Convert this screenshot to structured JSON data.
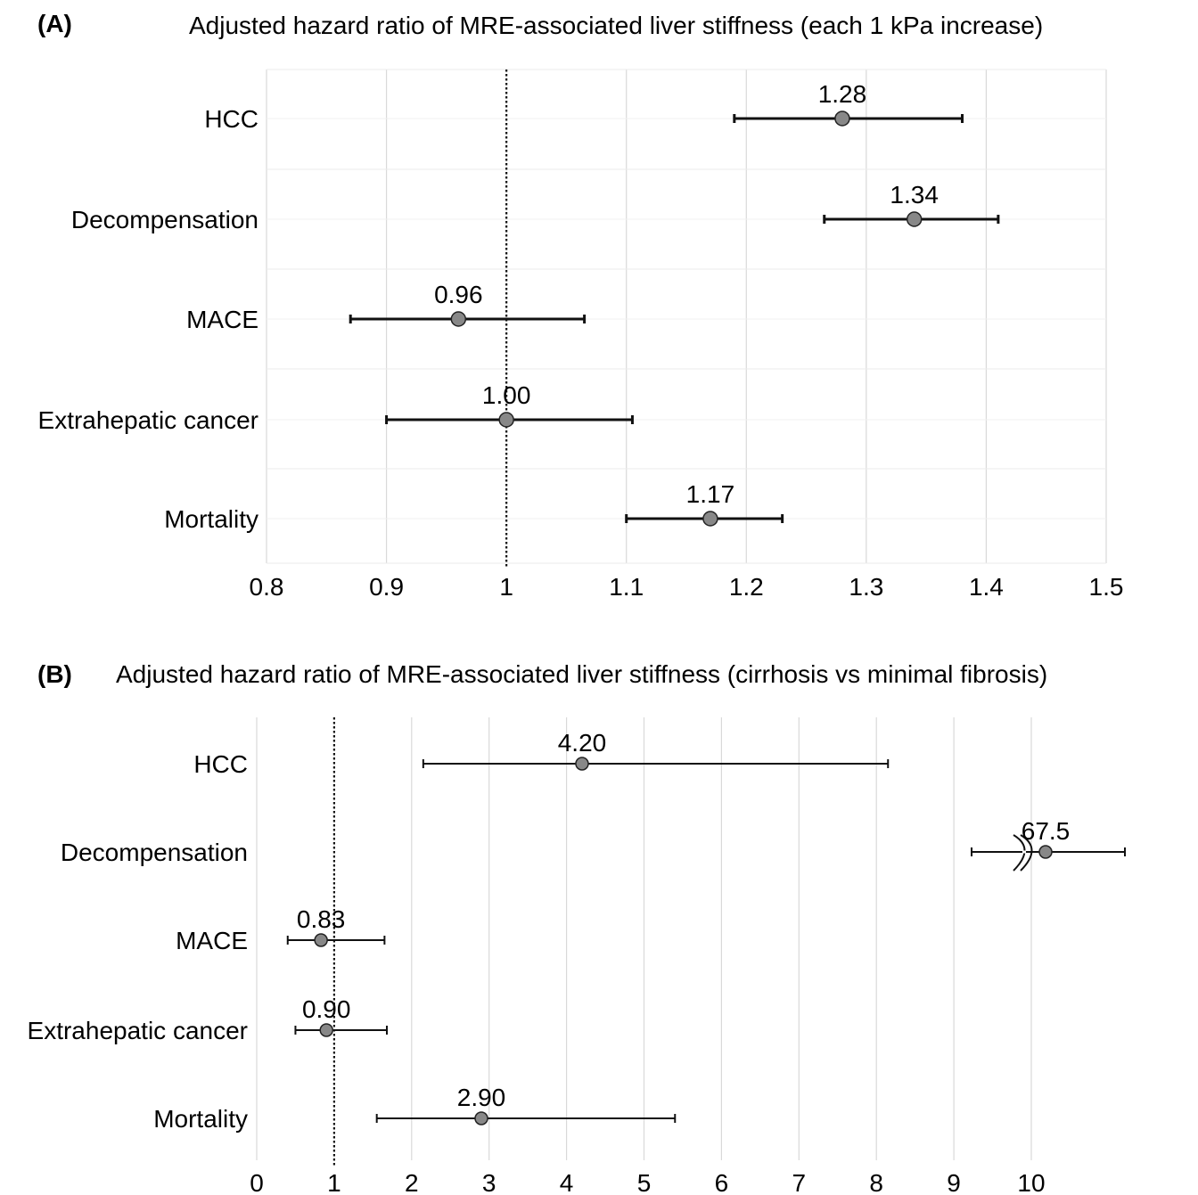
{
  "chart_data": [
    {
      "type": "forest",
      "panel_label": "(A)",
      "title": "Adjusted hazard ratio of MRE-associated liver stiffness (each 1 kPa increase)",
      "xlabel": "",
      "ylabel": "",
      "xlim": [
        0.8,
        1.5
      ],
      "xticks": [
        0.8,
        0.9,
        1,
        1.1,
        1.2,
        1.3,
        1.4,
        1.5
      ],
      "xtick_labels": [
        "0.8",
        "0.9",
        "1",
        "1.1",
        "1.2",
        "1.3",
        "1.4",
        "1.5"
      ],
      "reference_line": 1,
      "grid": true,
      "categories": [
        "HCC",
        "Decompensation",
        "MACE",
        "Extrahepatic cancer",
        "Mortality"
      ],
      "estimates": [
        1.28,
        1.34,
        0.96,
        1.0,
        1.17
      ],
      "value_labels": [
        "1.28",
        "1.34",
        "0.96",
        "1.00",
        "1.17"
      ],
      "ci_lower": [
        1.19,
        1.265,
        0.87,
        0.9,
        1.1
      ],
      "ci_upper": [
        1.38,
        1.41,
        1.065,
        1.105,
        1.23
      ]
    },
    {
      "type": "forest",
      "panel_label": "(B)",
      "title": "Adjusted hazard ratio of MRE-associated liver stiffness (cirrhosis vs minimal fibrosis)",
      "xlabel": "",
      "ylabel": "",
      "xlim": [
        0,
        11.2
      ],
      "xticks": [
        0,
        1,
        2,
        3,
        4,
        5,
        6,
        7,
        8,
        9,
        10
      ],
      "xtick_labels": [
        "0",
        "1",
        "2",
        "3",
        "4",
        "5",
        "6",
        "7",
        "8",
        "9",
        "10"
      ],
      "reference_line": 1,
      "grid": true,
      "axis_break": "Decompensation",
      "categories": [
        "HCC",
        "Decompensation",
        "MACE",
        "Extrahepatic cancer",
        "Mortality"
      ],
      "estimates": [
        4.2,
        67.5,
        0.83,
        0.9,
        2.9
      ],
      "value_labels": [
        "4.20",
        "67.5",
        "0.83",
        "0.90",
        "2.90"
      ],
      "ci_lower": [
        2.15,
        null,
        0.4,
        0.5,
        1.55
      ],
      "ci_upper": [
        8.15,
        null,
        1.65,
        1.68,
        5.4
      ]
    }
  ],
  "colors": {
    "marker_fill": "#888888",
    "marker_stroke": "#222222",
    "line": "#111111",
    "grid": "#d9d9d9",
    "reference": "#111111"
  }
}
